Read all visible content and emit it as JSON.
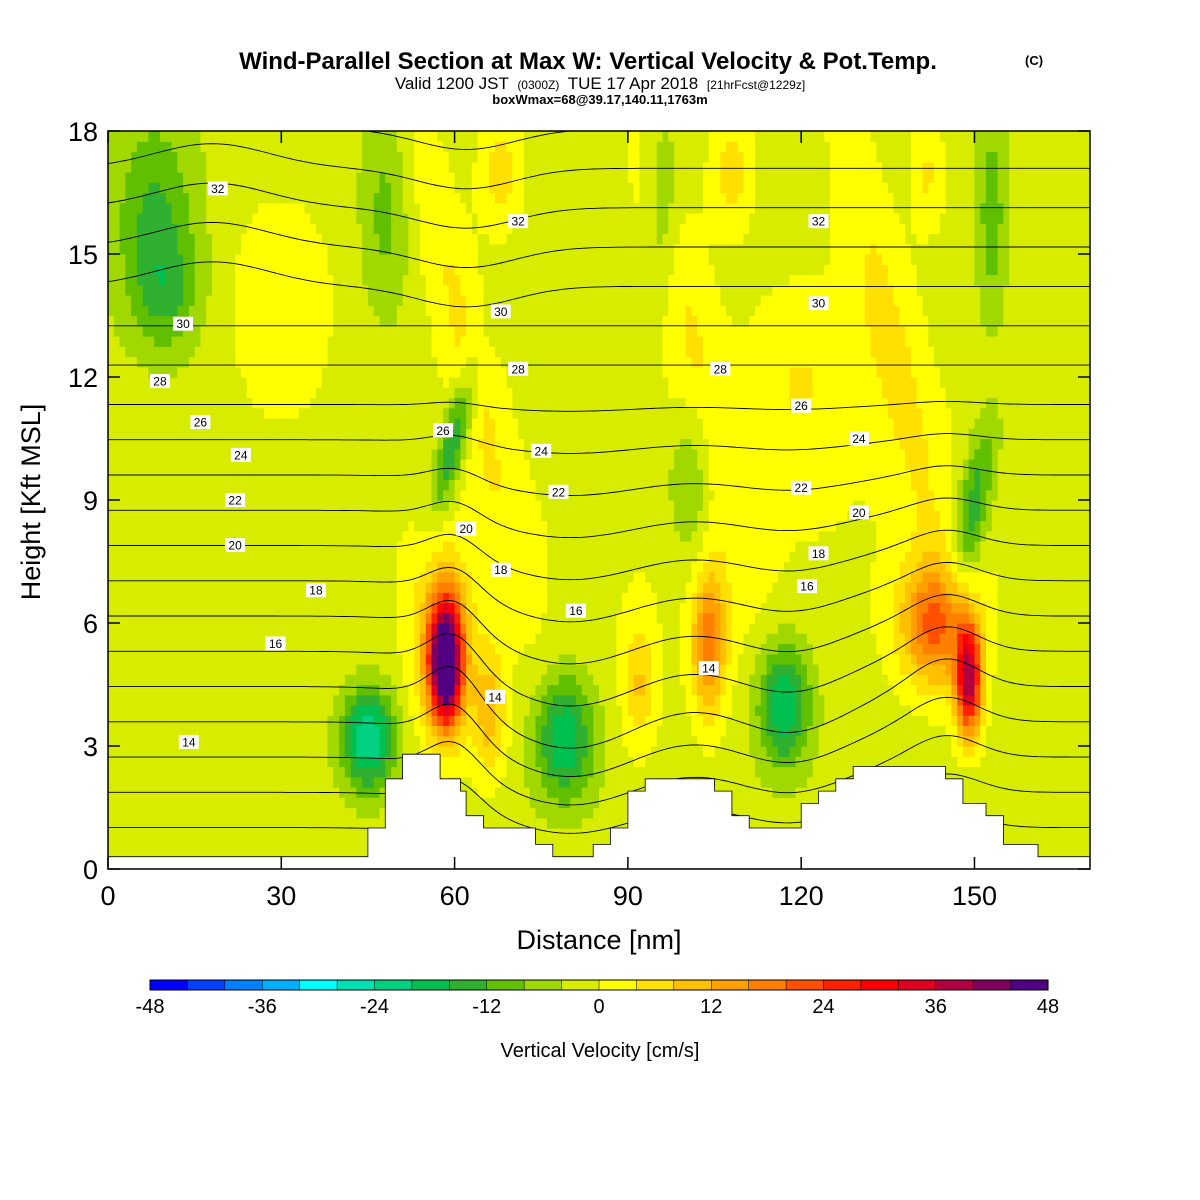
{
  "chart_data": {
    "type": "heatmap",
    "title": "Wind-Parallel Section at Max W: Vertical Velocity & Pot.Temp.",
    "title_mark": "(C)",
    "subtitle": {
      "valid": "Valid 1200 JST",
      "utc": "(0300Z)",
      "date": "TUE 17 Apr 2018",
      "forecast": "[21hrFcst@1229z]"
    },
    "info_line": "boxWmax=68@39.17,140.11,1763m",
    "xlabel": "Distance [nm]",
    "ylabel": "Height [Kft MSL]",
    "xlim": [
      0,
      170
    ],
    "ylim": [
      0,
      18
    ],
    "x_ticks": [
      0,
      30,
      60,
      90,
      120,
      150
    ],
    "y_ticks": [
      0,
      3,
      6,
      9,
      12,
      15,
      18
    ],
    "colorbar": {
      "label": "Vertical Velocity [cm/s]",
      "min": -48,
      "max": 48,
      "step": 4,
      "tick_labels": [
        -48,
        -36,
        -24,
        -12,
        0,
        12,
        24,
        36,
        48
      ],
      "colors": [
        "#0000ff",
        "#0040ff",
        "#0080ff",
        "#00b0ff",
        "#00ffff",
        "#00e0b0",
        "#00d080",
        "#00c050",
        "#30b030",
        "#60c000",
        "#a0d800",
        "#d8ec00",
        "#ffff00",
        "#ffe000",
        "#ffc000",
        "#ffa000",
        "#ff8000",
        "#ff5000",
        "#ff2000",
        "#ff0000",
        "#e00020",
        "#b00040",
        "#800060",
        "#500080"
      ]
    },
    "theta_contour_labels": [
      {
        "value": 14,
        "x": 14,
        "y": 3.1
      },
      {
        "value": 14,
        "x": 67,
        "y": 4.2
      },
      {
        "value": 14,
        "x": 104,
        "y": 4.9
      },
      {
        "value": 16,
        "x": 29,
        "y": 5.5
      },
      {
        "value": 16,
        "x": 81,
        "y": 6.3
      },
      {
        "value": 16,
        "x": 121,
        "y": 6.9
      },
      {
        "value": 18,
        "x": 36,
        "y": 6.8
      },
      {
        "value": 18,
        "x": 68,
        "y": 7.3
      },
      {
        "value": 18,
        "x": 123,
        "y": 7.7
      },
      {
        "value": 20,
        "x": 22,
        "y": 7.9
      },
      {
        "value": 20,
        "x": 62,
        "y": 8.3
      },
      {
        "value": 20,
        "x": 130,
        "y": 8.7
      },
      {
        "value": 22,
        "x": 22,
        "y": 9.0
      },
      {
        "value": 22,
        "x": 78,
        "y": 9.2
      },
      {
        "value": 22,
        "x": 120,
        "y": 9.3
      },
      {
        "value": 24,
        "x": 23,
        "y": 10.1
      },
      {
        "value": 24,
        "x": 75,
        "y": 10.2
      },
      {
        "value": 24,
        "x": 130,
        "y": 10.5
      },
      {
        "value": 26,
        "x": 16,
        "y": 10.9
      },
      {
        "value": 26,
        "x": 58,
        "y": 10.7
      },
      {
        "value": 26,
        "x": 120,
        "y": 11.3
      },
      {
        "value": 28,
        "x": 9,
        "y": 11.9
      },
      {
        "value": 28,
        "x": 71,
        "y": 12.2
      },
      {
        "value": 28,
        "x": 106,
        "y": 12.2
      },
      {
        "value": 30,
        "x": 13,
        "y": 13.3
      },
      {
        "value": 30,
        "x": 68,
        "y": 13.6
      },
      {
        "value": 30,
        "x": 123,
        "y": 13.8
      },
      {
        "value": 32,
        "x": 19,
        "y": 16.6
      },
      {
        "value": 32,
        "x": 71,
        "y": 15.8
      },
      {
        "value": 32,
        "x": 123,
        "y": 15.8
      }
    ],
    "updraft_cores": [
      {
        "x": 58.5,
        "y": 5.0,
        "w_max": 48
      },
      {
        "x": 149,
        "y": 4.5,
        "w_max": 36
      },
      {
        "x": 103,
        "y": 5.5,
        "w_max": 22
      }
    ],
    "terrain": [
      [
        0,
        0.3
      ],
      [
        45,
        0.3
      ],
      [
        45,
        1.0
      ],
      [
        48,
        1.0
      ],
      [
        48,
        2.2
      ],
      [
        51,
        2.2
      ],
      [
        51,
        2.8
      ],
      [
        57.5,
        2.8
      ],
      [
        57.5,
        2.2
      ],
      [
        61,
        2.2
      ],
      [
        61,
        1.9
      ],
      [
        62,
        1.9
      ],
      [
        62,
        1.3
      ],
      [
        65,
        1.3
      ],
      [
        65,
        1.0
      ],
      [
        74,
        1.0
      ],
      [
        74,
        0.6
      ],
      [
        77,
        0.6
      ],
      [
        77,
        0.3
      ],
      [
        84,
        0.3
      ],
      [
        84,
        0.6
      ],
      [
        87,
        0.6
      ],
      [
        87,
        1.0
      ],
      [
        90,
        1.0
      ],
      [
        90,
        1.9
      ],
      [
        93,
        1.9
      ],
      [
        93,
        2.2
      ],
      [
        105,
        2.2
      ],
      [
        105,
        1.9
      ],
      [
        108,
        1.9
      ],
      [
        108,
        1.3
      ],
      [
        111,
        1.3
      ],
      [
        111,
        1.0
      ],
      [
        120,
        1.0
      ],
      [
        120,
        1.6
      ],
      [
        123,
        1.6
      ],
      [
        123,
        1.9
      ],
      [
        126,
        1.9
      ],
      [
        126,
        2.2
      ],
      [
        129,
        2.2
      ],
      [
        129,
        2.5
      ],
      [
        145,
        2.5
      ],
      [
        145,
        2.2
      ],
      [
        148,
        2.2
      ],
      [
        148,
        1.6
      ],
      [
        152,
        1.6
      ],
      [
        152,
        1.3
      ],
      [
        155,
        1.3
      ],
      [
        155,
        0.6
      ],
      [
        161,
        0.6
      ],
      [
        161,
        0.3
      ],
      [
        170,
        0.3
      ]
    ]
  }
}
